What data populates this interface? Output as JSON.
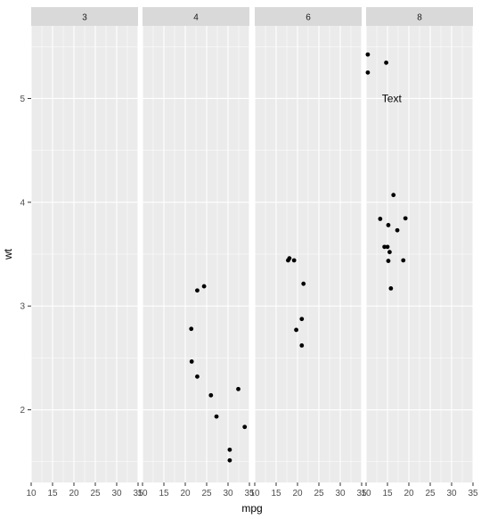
{
  "chart_data": {
    "type": "scatter",
    "facet_variable": "cyl",
    "xlabel": "mpg",
    "ylabel": "wt",
    "xlim": [
      10,
      35
    ],
    "ylim": [
      1.3,
      5.7
    ],
    "x_ticks": [
      10,
      15,
      20,
      25,
      30,
      35
    ],
    "x_tick_labels": [
      "10",
      "15",
      "20",
      "25",
      "30",
      "35"
    ],
    "y_ticks": [
      2,
      3,
      4,
      5
    ],
    "y_tick_labels": [
      "2",
      "3",
      "4",
      "5"
    ],
    "grid": true,
    "legend": "none",
    "colors": {
      "panel_bg": "#ebebeb",
      "grid_major": "#ffffff",
      "strip_bg": "#d9d9d9",
      "point": "#000000"
    },
    "panels": [
      {
        "label": "3",
        "points": []
      },
      {
        "label": "4",
        "points": [
          {
            "x": 22.8,
            "y": 2.32
          },
          {
            "x": 24.4,
            "y": 3.19
          },
          {
            "x": 22.8,
            "y": 3.15
          },
          {
            "x": 32.4,
            "y": 2.2
          },
          {
            "x": 30.4,
            "y": 1.615
          },
          {
            "x": 33.9,
            "y": 1.835
          },
          {
            "x": 21.5,
            "y": 2.465
          },
          {
            "x": 27.3,
            "y": 1.935
          },
          {
            "x": 26.0,
            "y": 2.14
          },
          {
            "x": 30.4,
            "y": 1.513
          },
          {
            "x": 21.4,
            "y": 2.78
          }
        ]
      },
      {
        "label": "6",
        "points": [
          {
            "x": 21.0,
            "y": 2.62
          },
          {
            "x": 21.0,
            "y": 2.875
          },
          {
            "x": 21.4,
            "y": 3.215
          },
          {
            "x": 18.1,
            "y": 3.46
          },
          {
            "x": 19.2,
            "y": 3.44
          },
          {
            "x": 17.8,
            "y": 3.44
          },
          {
            "x": 19.7,
            "y": 2.77
          }
        ]
      },
      {
        "label": "8",
        "points": [
          {
            "x": 18.7,
            "y": 3.44
          },
          {
            "x": 14.3,
            "y": 3.57
          },
          {
            "x": 16.4,
            "y": 4.07
          },
          {
            "x": 17.3,
            "y": 3.73
          },
          {
            "x": 15.2,
            "y": 3.78
          },
          {
            "x": 10.4,
            "y": 5.25
          },
          {
            "x": 10.4,
            "y": 5.424
          },
          {
            "x": 14.7,
            "y": 5.345
          },
          {
            "x": 15.5,
            "y": 3.52
          },
          {
            "x": 15.2,
            "y": 3.435
          },
          {
            "x": 13.3,
            "y": 3.84
          },
          {
            "x": 19.2,
            "y": 3.845
          },
          {
            "x": 15.8,
            "y": 3.17
          },
          {
            "x": 15.0,
            "y": 3.57
          }
        ]
      }
    ],
    "annotation": {
      "panel": "8",
      "text": "Text",
      "x": 16,
      "y": 5
    }
  }
}
